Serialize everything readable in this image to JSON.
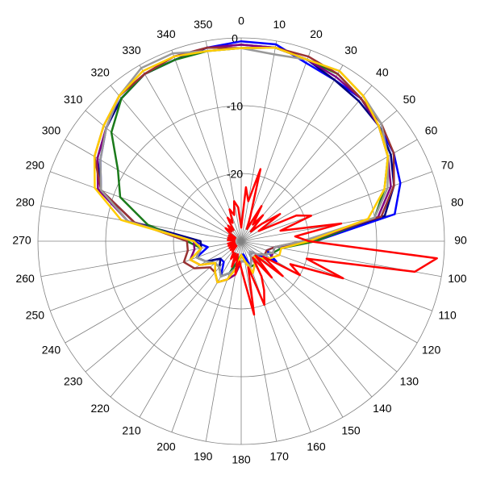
{
  "chart_data": {
    "type": "polar",
    "rlim": [
      -30,
      0
    ],
    "rticks": [
      -20,
      -10,
      0
    ],
    "thetaticks": [
      0,
      10,
      20,
      30,
      40,
      50,
      60,
      70,
      80,
      90,
      100,
      110,
      120,
      130,
      140,
      150,
      160,
      170,
      180,
      190,
      200,
      210,
      220,
      230,
      240,
      250,
      260,
      270,
      280,
      290,
      300,
      310,
      320,
      330,
      340,
      350
    ],
    "theta": [
      0,
      10,
      20,
      30,
      40,
      50,
      60,
      70,
      80,
      90,
      100,
      110,
      120,
      130,
      140,
      150,
      160,
      170,
      180,
      190,
      200,
      210,
      220,
      230,
      240,
      250,
      260,
      270,
      280,
      290,
      300,
      310,
      320,
      330,
      340,
      350
    ],
    "series": [
      {
        "color": "#0000ff",
        "values": [
          -0.5,
          -0.5,
          -2,
          -2.5,
          -2.5,
          -3.5,
          -4,
          -5,
          -7,
          -19,
          -25,
          -26,
          -24,
          -27,
          -28,
          -27,
          -26,
          -28,
          -28,
          -27,
          -25,
          -24,
          -26,
          -26,
          -24,
          -23,
          -25,
          -23,
          -13,
          -8,
          -6,
          -4,
          -2.5,
          -1.5,
          -1.5,
          -1
        ]
      },
      {
        "color": "#000080",
        "values": [
          -1,
          -1,
          -1.5,
          -2.5,
          -3,
          -3.5,
          -4.5,
          -6,
          -8.5,
          -20,
          -25,
          -25,
          -26,
          -27,
          -28,
          -27,
          -26,
          -27,
          -27,
          -26,
          -25,
          -24,
          -25,
          -26,
          -24,
          -23,
          -24,
          -24,
          -14,
          -8,
          -5.5,
          -4,
          -2.5,
          -1.5,
          -1.5,
          -1
        ]
      },
      {
        "color": "#1a7a1a",
        "values": [
          -1.5,
          -1,
          -1.5,
          -1.5,
          -2.5,
          -3.5,
          -5,
          -7.5,
          -10,
          -19,
          -24,
          -25,
          -26,
          -27,
          -27,
          -26,
          -26,
          -27,
          -28,
          -27,
          -25,
          -24,
          -25,
          -25,
          -24,
          -23,
          -24,
          -22,
          -16,
          -11,
          -9,
          -5,
          -2.5,
          -1.5,
          -1.5,
          -1.5
        ]
      },
      {
        "color": "#800080",
        "values": [
          -1,
          -1,
          -1.5,
          -2,
          -2.5,
          -3.5,
          -5,
          -6.5,
          -9.5,
          -20,
          -25,
          -25,
          -25,
          -26,
          -27,
          -26,
          -25,
          -27,
          -27,
          -25,
          -24,
          -23,
          -24,
          -25,
          -23,
          -22,
          -23,
          -23,
          -13,
          -7.5,
          -5.5,
          -4,
          -2,
          -1.5,
          -1,
          -1
        ]
      },
      {
        "color": "#993333",
        "values": [
          -1.5,
          -1,
          -1,
          -1.5,
          -2.5,
          -3,
          -4,
          -6,
          -9,
          -21,
          -25,
          -26,
          -26,
          -27,
          -27,
          -27,
          -26,
          -27,
          -27,
          -26,
          -24,
          -23,
          -24,
          -24,
          -22,
          -21,
          -22,
          -22,
          -14,
          -8,
          -5,
          -3.5,
          -2,
          -1.5,
          -1,
          -1
        ]
      },
      {
        "color": "#999999",
        "values": [
          -1.5,
          -2,
          -1.5,
          -1,
          -2,
          -3,
          -5,
          -7,
          -10,
          -21,
          -25,
          -25,
          -26,
          -27,
          -28,
          -27,
          -26,
          -27,
          -27,
          -26,
          -25,
          -24,
          -25,
          -25,
          -24,
          -23,
          -24,
          -23,
          -13,
          -8,
          -6,
          -4,
          -2,
          -0.5,
          -0.5,
          -1.5
        ]
      },
      {
        "color": "#ffcc00",
        "values": [
          -1.5,
          -1,
          -1.5,
          -1,
          -2,
          -3.5,
          -5,
          -7.5,
          -11,
          -20,
          -24,
          -24,
          -25,
          -26,
          -27,
          -26,
          -25,
          -27,
          -28,
          -26,
          -24,
          -23,
          -24,
          -25,
          -23,
          -22,
          -24,
          -23,
          -12,
          -7,
          -5,
          -3.5,
          -2,
          -1,
          -1,
          -1.5
        ]
      },
      {
        "color": "#ff0000",
        "theta": [
          0,
          5,
          10,
          15,
          20,
          25,
          30,
          35,
          40,
          45,
          50,
          55,
          60,
          65,
          70,
          75,
          80,
          85,
          90,
          95,
          100,
          105,
          110,
          115,
          120,
          125,
          130,
          135,
          140,
          145,
          150,
          155,
          160,
          165,
          170,
          175,
          180,
          185,
          190,
          195,
          200,
          205,
          210,
          215,
          220,
          225,
          230,
          235,
          240,
          245,
          250,
          255,
          260,
          265,
          270,
          275,
          280,
          285,
          290,
          295,
          300,
          305,
          310,
          315,
          320,
          325,
          330,
          335,
          340,
          345,
          350,
          355
        ],
        "values": [
          -28,
          -22,
          -24,
          -19,
          -26,
          -28,
          -24,
          -27,
          -25,
          -28,
          -26,
          -23,
          -27,
          -21,
          -19,
          -24,
          -15,
          -22,
          -20,
          -1,
          -4,
          -20,
          -14,
          -22,
          -20,
          -26,
          -22,
          -27,
          -23,
          -27,
          -24,
          -22,
          -20,
          -26,
          -19,
          -24,
          -26,
          -27,
          -25,
          -28,
          -26,
          -28,
          -27,
          -28,
          -28,
          -29,
          -28,
          -29,
          -28,
          -29,
          -28,
          -29,
          -28,
          -29,
          -29,
          -28,
          -29,
          -28,
          -29,
          -28,
          -29,
          -28,
          -27,
          -28,
          -27,
          -28,
          -26,
          -27,
          -25,
          -26,
          -24,
          -25
        ]
      }
    ]
  }
}
